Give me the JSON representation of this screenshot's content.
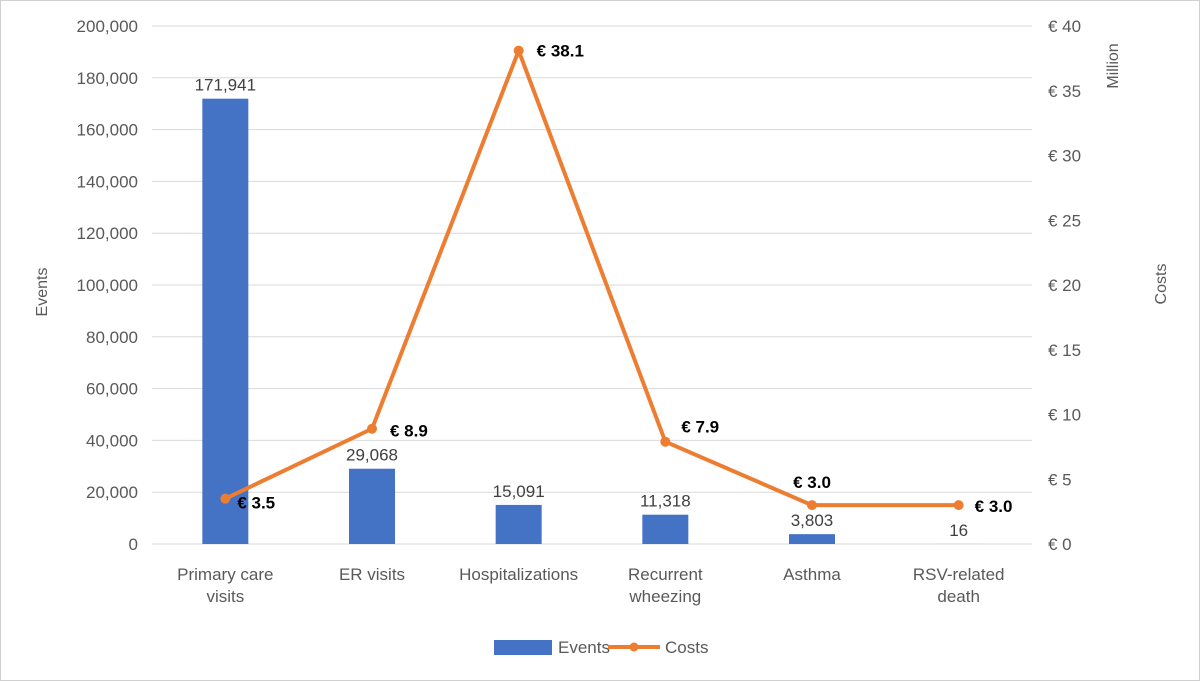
{
  "chart_data": {
    "type": "bar+line",
    "categories": [
      [
        "Primary care",
        "visits"
      ],
      [
        "ER visits"
      ],
      [
        "Hospitalizations"
      ],
      [
        "Recurrent",
        "wheezing"
      ],
      [
        "Asthma"
      ],
      [
        "RSV-related",
        "death"
      ]
    ],
    "series": [
      {
        "name": "Events",
        "type": "bar",
        "axis": "left",
        "color": "#4472c4",
        "values": [
          171941,
          29068,
          15091,
          11318,
          3803,
          16
        ],
        "labels": [
          "171,941",
          "29,068",
          "15,091",
          "11,318",
          "3,803",
          "16"
        ]
      },
      {
        "name": "Costs",
        "type": "line",
        "axis": "right",
        "color": "#ed7d31",
        "values": [
          3.5,
          8.9,
          38.1,
          7.9,
          3.0,
          3.0
        ],
        "labels": [
          "€ 3.5",
          "€ 8.9",
          "€ 38.1",
          "€ 7.9",
          "€ 3.0",
          "€ 3.0"
        ]
      }
    ],
    "y_left": {
      "label": "Events",
      "range": [
        0,
        200000
      ],
      "ticks": [
        0,
        20000,
        40000,
        60000,
        80000,
        100000,
        120000,
        140000,
        160000,
        180000,
        200000
      ],
      "tick_labels": [
        "0",
        "20,000",
        "40,000",
        "60,000",
        "80,000",
        "100,000",
        "120,000",
        "140,000",
        "160,000",
        "180,000",
        "200,000"
      ]
    },
    "y_right": {
      "label": "Costs",
      "unit": "Million",
      "range": [
        0,
        40
      ],
      "ticks": [
        0,
        5,
        10,
        15,
        20,
        25,
        30,
        35,
        40
      ],
      "tick_labels": [
        "€ 0",
        "€ 5",
        "€ 10",
        "€ 15",
        "€ 20",
        "€ 25",
        "€ 30",
        "€ 35",
        "€ 40"
      ]
    },
    "grid": true,
    "legend": {
      "position": "bottom",
      "entries": [
        "Events",
        "Costs"
      ]
    }
  }
}
